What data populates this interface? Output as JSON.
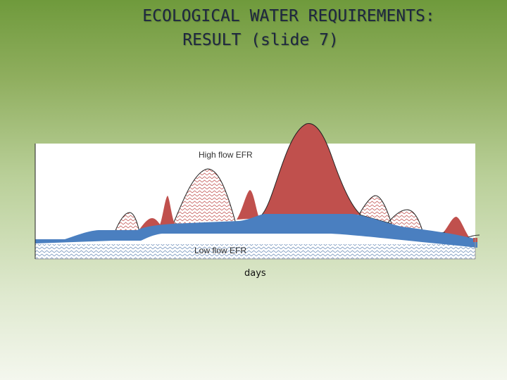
{
  "slide": {
    "title_line1": "ECOLOGICAL WATER REQUIREMENTS:",
    "title_line2": "RESULT (slide 7)"
  },
  "diagram": {
    "high_flow_label": "High flow EFR",
    "low_flow_label": "Low flow EFR",
    "x_axis_label": "days"
  },
  "colors": {
    "baseflow": "#4a7fc0",
    "floods_retained": "#c0504d",
    "hatch": "#c0504d",
    "hatch_low": "#6a8cb8",
    "outline": "#222222"
  }
}
